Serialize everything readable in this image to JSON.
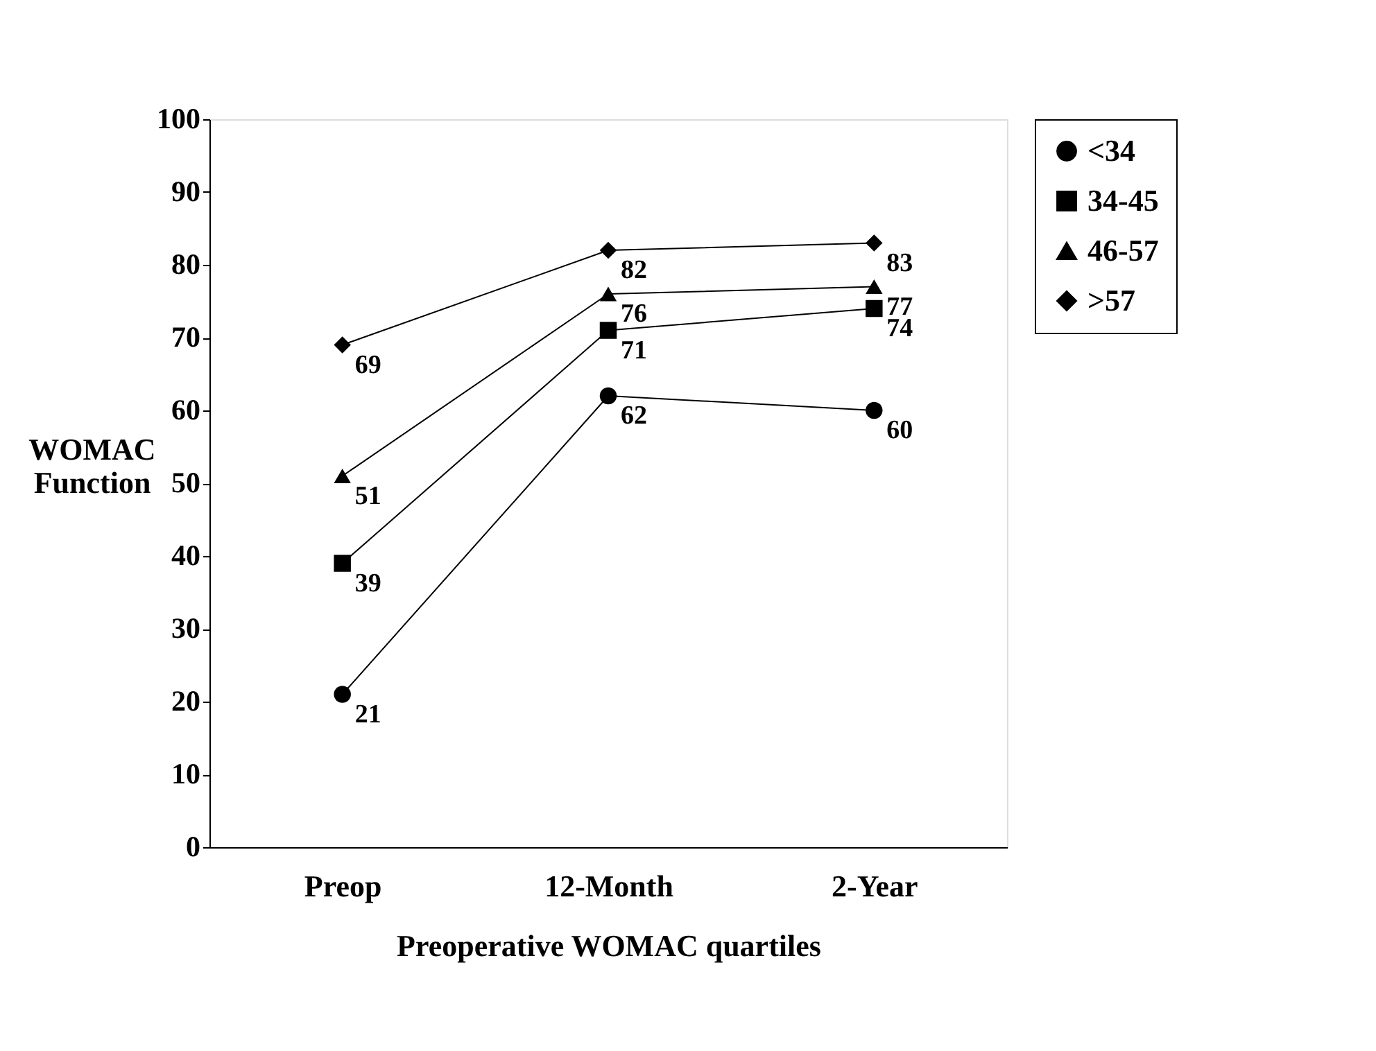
{
  "chart_data": {
    "type": "line",
    "xlabel": "Preoperative WOMAC quartiles",
    "ylabel": "WOMAC Function",
    "categories": [
      "Preop",
      "12-Month",
      "2-Year"
    ],
    "series": [
      {
        "name": "<34",
        "color": "#000000",
        "marker": "circle",
        "values": [
          21,
          62,
          60
        ]
      },
      {
        "name": "34-45",
        "color": "#000000",
        "marker": "square",
        "values": [
          39,
          71,
          74
        ]
      },
      {
        "name": "46-57",
        "color": "#000000",
        "marker": "triangle",
        "values": [
          51,
          76,
          77
        ]
      },
      {
        "name": ">57",
        "color": "#000000",
        "marker": "diamond",
        "values": [
          69,
          82,
          83
        ]
      }
    ],
    "ylim": [
      0,
      100
    ],
    "yticks": [
      0,
      10,
      20,
      30,
      40,
      50,
      60,
      70,
      80,
      90,
      100
    ],
    "grid": false,
    "legend": "right",
    "data_labels": true,
    "line_style": "solid"
  }
}
